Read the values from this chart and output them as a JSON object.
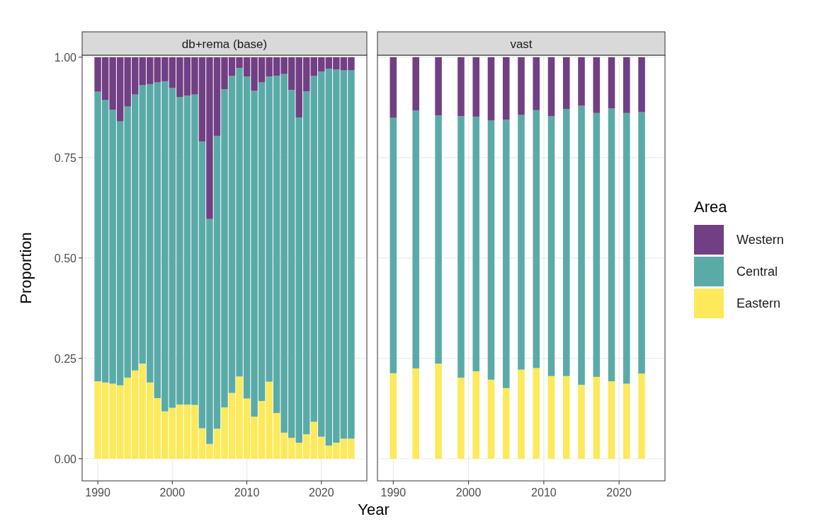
{
  "chart_data": [
    {
      "type": "bar",
      "title": "db+rema (base)",
      "ylabel": "Proportion",
      "xlabel": "Year",
      "stacked": true,
      "grid": true,
      "legend": false,
      "x": [
        1990,
        1991,
        1992,
        1993,
        1994,
        1995,
        1996,
        1997,
        1998,
        1999,
        2000,
        2001,
        2002,
        2003,
        2004,
        2005,
        2006,
        2007,
        2008,
        2009,
        2010,
        2011,
        2012,
        2013,
        2014,
        2015,
        2016,
        2017,
        2018,
        2019,
        2020,
        2021,
        2022,
        2023,
        2024
      ],
      "xlim": [
        1987.9,
        2026.1
      ],
      "xticks": [
        1990,
        2000,
        2010,
        2020
      ],
      "ylim": [
        -0.055,
        1.005
      ],
      "yticks": [
        {
          "value": 0,
          "label": "0.00"
        },
        {
          "value": 0.25,
          "label": "0.25"
        },
        {
          "value": 0.5,
          "label": "0.50"
        },
        {
          "value": 0.75,
          "label": "0.75"
        },
        {
          "value": 1,
          "label": "1.00"
        }
      ],
      "series": [
        {
          "color": "#fde95a",
          "values": [
            0.193,
            0.19,
            0.187,
            0.183,
            0.202,
            0.22,
            0.237,
            0.19,
            0.151,
            0.118,
            0.127,
            0.135,
            0.135,
            0.134,
            0.076,
            0.037,
            0.075,
            0.128,
            0.164,
            0.205,
            0.15,
            0.105,
            0.144,
            0.192,
            0.114,
            0.065,
            0.052,
            0.04,
            0.061,
            0.092,
            0.055,
            0.033,
            0.04,
            0.05,
            0.05
          ]
        },
        {
          "color": "#5aaba8",
          "values": [
            0.721,
            0.703,
            0.682,
            0.657,
            0.675,
            0.687,
            0.693,
            0.743,
            0.786,
            0.822,
            0.796,
            0.766,
            0.769,
            0.773,
            0.714,
            0.56,
            0.729,
            0.792,
            0.789,
            0.768,
            0.802,
            0.811,
            0.793,
            0.76,
            0.84,
            0.893,
            0.866,
            0.81,
            0.854,
            0.861,
            0.909,
            0.938,
            0.929,
            0.917,
            0.917
          ]
        },
        {
          "color": "#713f83",
          "values": [
            0.086,
            0.107,
            0.131,
            0.16,
            0.123,
            0.093,
            0.07,
            0.067,
            0.063,
            0.06,
            0.077,
            0.099,
            0.096,
            0.093,
            0.21,
            0.403,
            0.196,
            0.08,
            0.047,
            0.027,
            0.048,
            0.084,
            0.063,
            0.048,
            0.046,
            0.042,
            0.082,
            0.15,
            0.085,
            0.047,
            0.036,
            0.029,
            0.031,
            0.033,
            0.033
          ]
        }
      ]
    },
    {
      "type": "bar",
      "title": "vast",
      "legend_title": "Area",
      "legend": "right",
      "stacked": true,
      "grid": true,
      "tick_labels": "x",
      "x": [
        1990,
        1993,
        1996,
        1999,
        2001,
        2003,
        2005,
        2007,
        2009,
        2011,
        2013,
        2015,
        2017,
        2019,
        2021,
        2023
      ],
      "xlim": [
        1987.9,
        2026.1
      ],
      "xticks": [
        1990,
        2000,
        2010,
        2020
      ],
      "ylim": [
        -0.055,
        1.005
      ],
      "yticks": [
        0,
        0.25,
        0.5,
        0.75,
        1
      ],
      "series": [
        {
          "name": "Eastern",
          "color": "#fde95a",
          "values": [
            0.213,
            0.225,
            0.237,
            0.202,
            0.218,
            0.197,
            0.176,
            0.222,
            0.226,
            0.206,
            0.206,
            0.184,
            0.204,
            0.193,
            0.187,
            0.212
          ]
        },
        {
          "name": "Central",
          "color": "#5aaba8",
          "values": [
            0.636,
            0.642,
            0.618,
            0.651,
            0.634,
            0.645,
            0.668,
            0.634,
            0.642,
            0.647,
            0.665,
            0.695,
            0.657,
            0.679,
            0.674,
            0.651
          ]
        },
        {
          "name": "Western",
          "color": "#713f83",
          "values": [
            0.151,
            0.133,
            0.145,
            0.147,
            0.148,
            0.158,
            0.156,
            0.144,
            0.132,
            0.147,
            0.129,
            0.121,
            0.139,
            0.128,
            0.139,
            0.137
          ]
        }
      ]
    }
  ]
}
